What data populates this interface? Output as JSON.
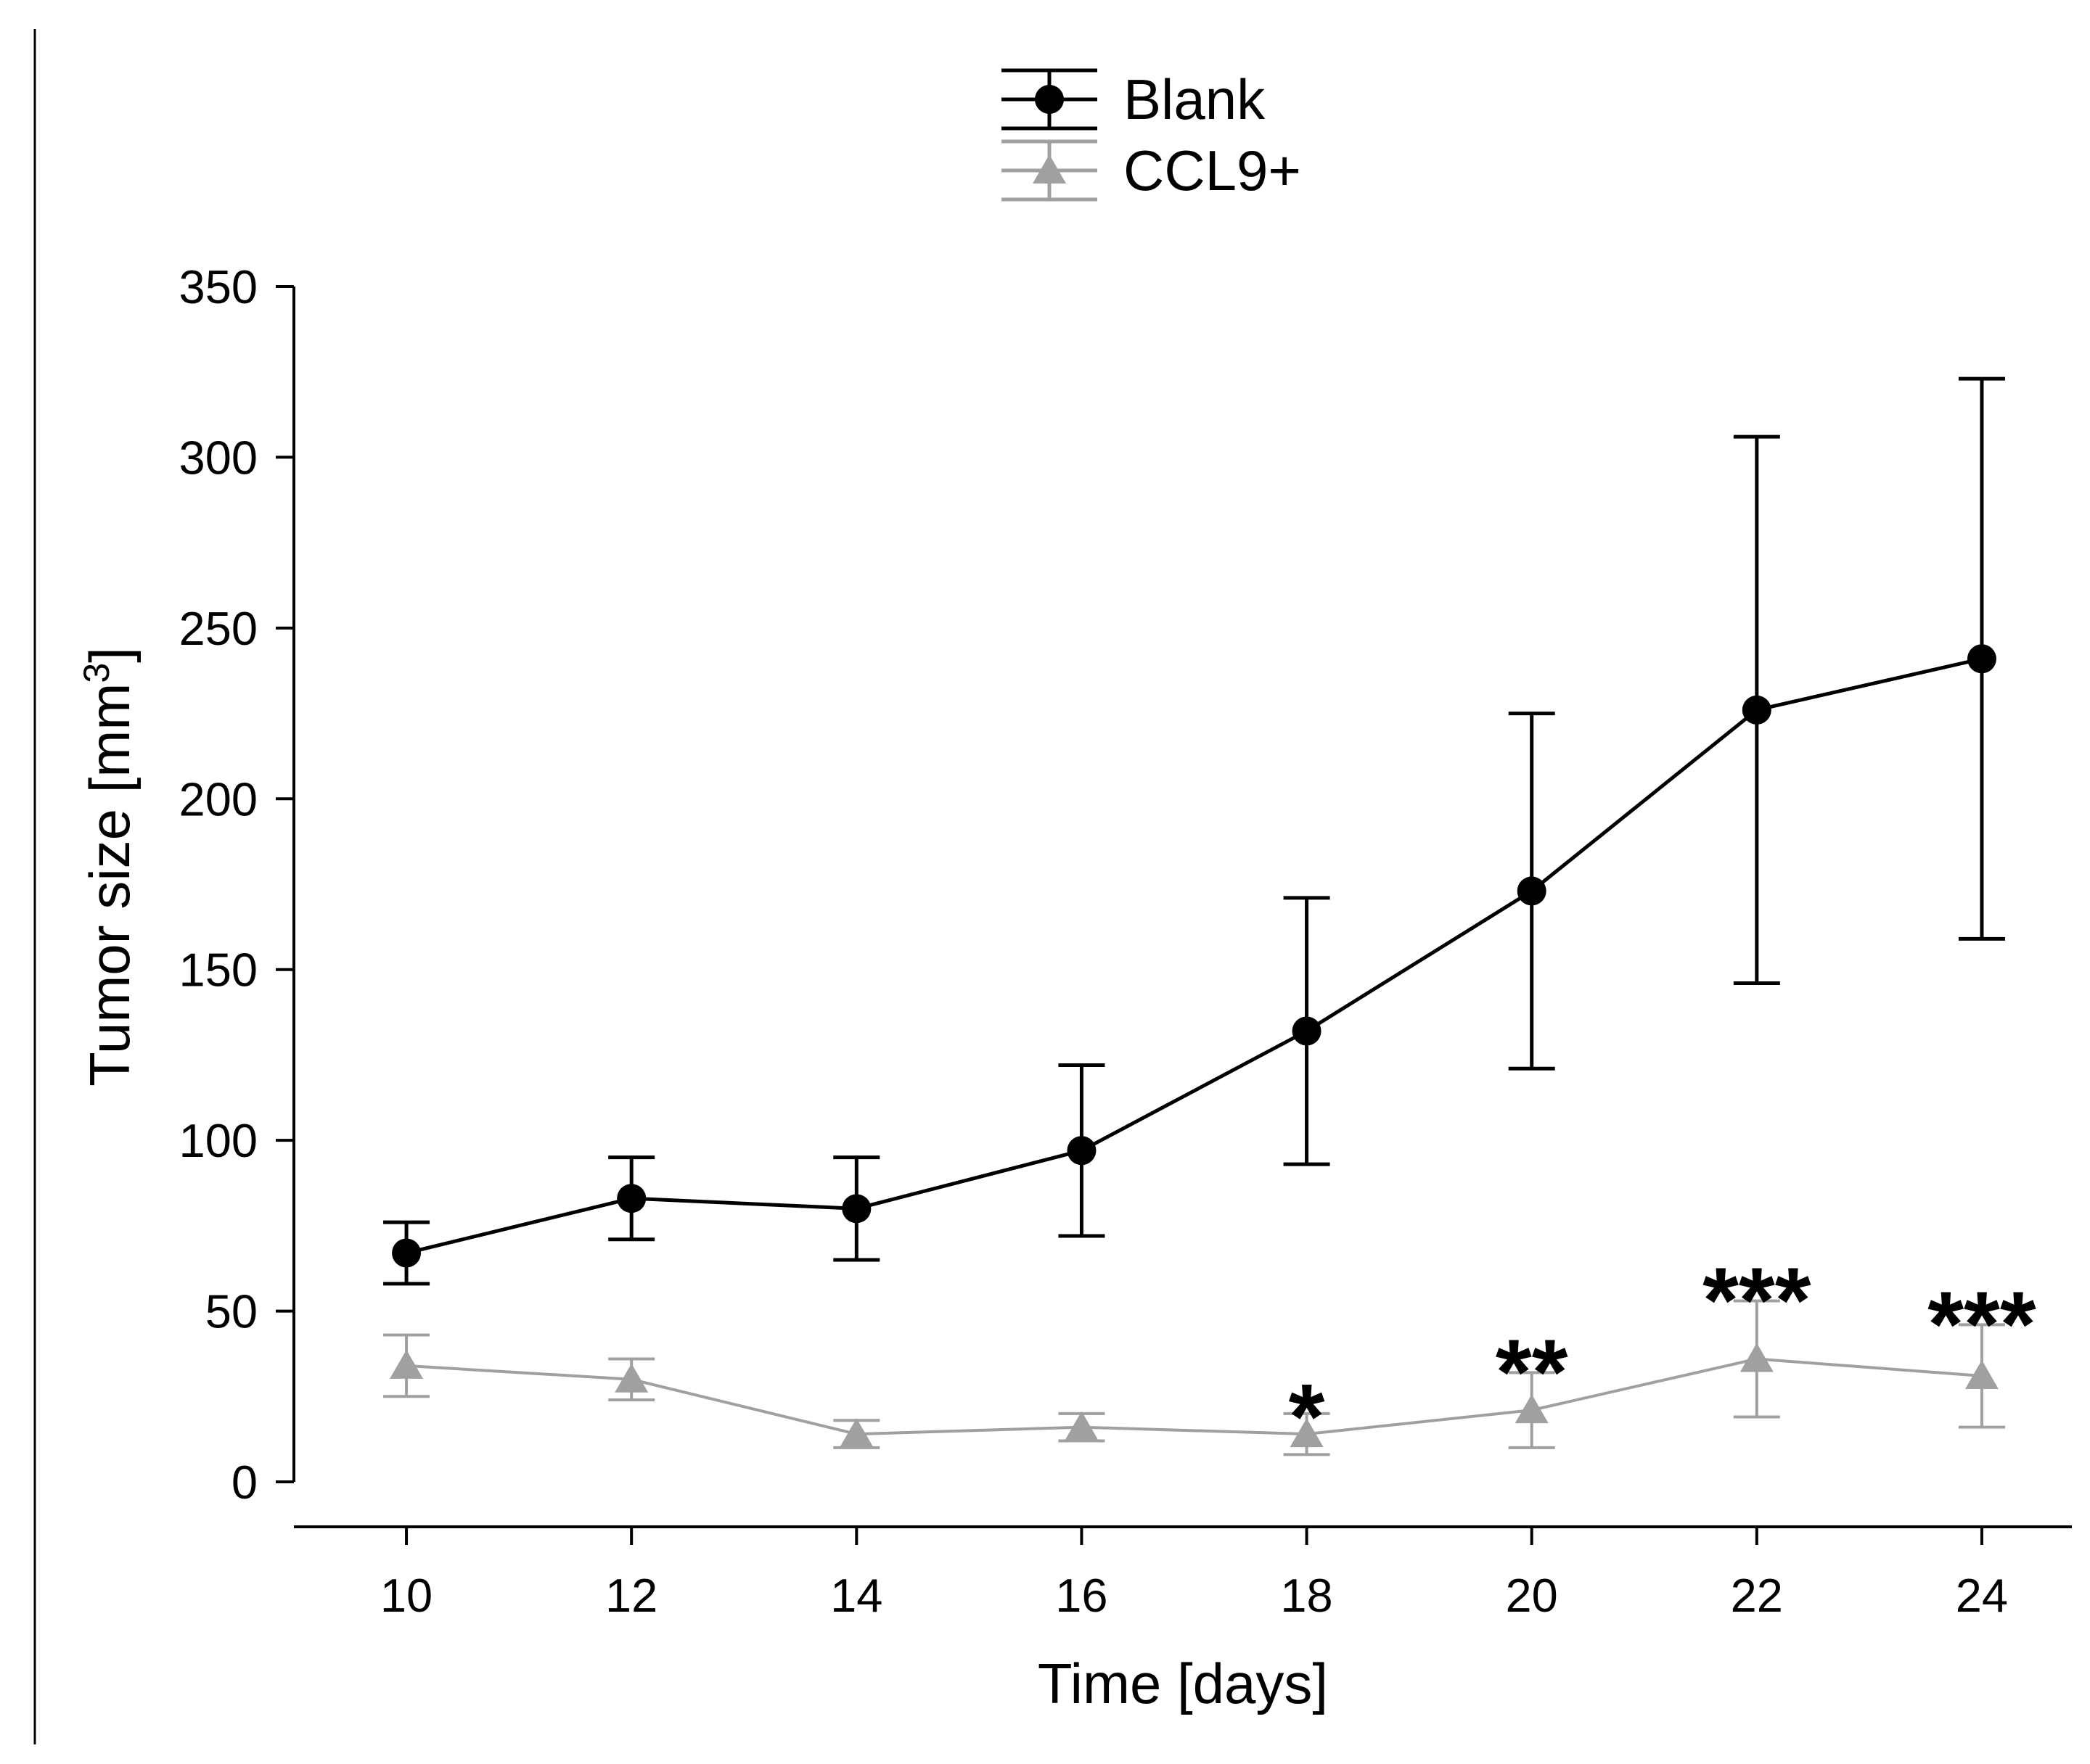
{
  "chart_data": {
    "type": "line",
    "title": "",
    "xlabel": "Time [days]",
    "ylabel": "Tumor size [mm",
    "ylabel_superscript": "3",
    "ylabel_suffix": "]",
    "x": [
      10,
      12,
      14,
      16,
      18,
      20,
      22,
      24
    ],
    "xlim": [
      9,
      24.8
    ],
    "ylim": [
      0,
      350
    ],
    "xticks": [
      10,
      12,
      14,
      16,
      18,
      20,
      22,
      24
    ],
    "yticks": [
      0,
      50,
      100,
      150,
      200,
      250,
      300,
      350
    ],
    "grid": false,
    "legend_position": "top-center",
    "series": [
      {
        "name": "Blank",
        "color": "#000000",
        "marker": "circle",
        "values": [
          67,
          83,
          80,
          97,
          132,
          173,
          226,
          241
        ],
        "error": [
          9,
          12,
          15,
          25,
          39,
          52,
          80,
          82
        ]
      },
      {
        "name": "CCL9+",
        "color": "#a0a0a0",
        "marker": "triangle",
        "values": [
          34,
          30,
          14,
          16,
          14,
          21,
          36,
          31
        ],
        "error": [
          9,
          6,
          4,
          4,
          6,
          11,
          17,
          15
        ]
      }
    ],
    "annotations": [
      {
        "x": 18,
        "text": "*",
        "y": 20
      },
      {
        "x": 20,
        "text": "**",
        "y": 33
      },
      {
        "x": 22,
        "text": "***",
        "y": 54
      },
      {
        "x": 24,
        "text": "***",
        "y": 47
      }
    ]
  }
}
